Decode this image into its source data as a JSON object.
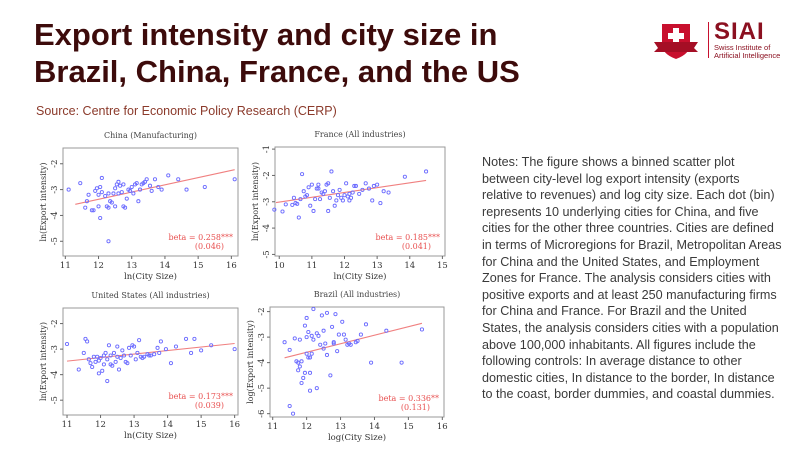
{
  "slide": {
    "title": "Export intensity and city size in Brazil, China, France, and the US",
    "source": "Source: Centre for Economic Policy Research (CERP)",
    "logo": {
      "name": "SIAI",
      "subtitle_line1": "Swiss Institute of",
      "subtitle_line2": "Artificial Intelligence"
    },
    "notes": "Notes: The figure shows a binned scatter plot between city-level log export intensity (exports relative to revenues) and log city size. Each dot (bin) represents 10 underlying cities for China, and five cities for the other three countries. Cities are defined in terms of Microregions for Brazil, Metropolitan Areas for China and the United States, and Employment Zones for France. The analysis considers cities with positive exports and at least 250 manufacturing firms for China and France. For Brazil and the United States, the analysis considers cities with a population above 100,000 inhabitants. All figures include the following controls: In average distance to other domestic cities, In distance to the border, In distance to the coast, border dummies, and coastal dummies."
  },
  "colors": {
    "title": "#3d0b0b",
    "points": "#6b6bff",
    "fit": "#f08080",
    "beta": "#e85050",
    "logo": "#c8102e"
  },
  "chart_data": [
    {
      "type": "scatter",
      "title": "China (Manufacturing)",
      "xlabel": "ln(City Size)",
      "ylabel": "ln(Export intensity)",
      "xlim": [
        10.93,
        16.2
      ],
      "ylim": [
        -5.57,
        -1.39
      ],
      "xticks": [
        11,
        12,
        13,
        14,
        15,
        16
      ],
      "yticks": [
        -2,
        -3,
        -4,
        -5
      ],
      "fit": [
        [
          11.3,
          -3.57
        ],
        [
          16.1,
          -2.23
        ]
      ],
      "beta": "beta = 0.258***",
      "se": "(0.046)",
      "points": [
        [
          11.1,
          -3.0
        ],
        [
          11.45,
          -2.75
        ],
        [
          11.6,
          -3.7
        ],
        [
          11.65,
          -3.45
        ],
        [
          11.7,
          -3.2
        ],
        [
          11.8,
          -3.8
        ],
        [
          11.85,
          -3.8
        ],
        [
          11.9,
          -3.05
        ],
        [
          11.95,
          -2.95
        ],
        [
          12.0,
          -3.2
        ],
        [
          12.0,
          -3.65
        ],
        [
          12.05,
          -2.9
        ],
        [
          12.1,
          -3.1
        ],
        [
          12.05,
          -4.1
        ],
        [
          12.1,
          -2.55
        ],
        [
          12.2,
          -3.25
        ],
        [
          12.25,
          -3.65
        ],
        [
          12.3,
          -3.7
        ],
        [
          12.3,
          -3.15
        ],
        [
          12.3,
          -5.0
        ],
        [
          12.35,
          -3.45
        ],
        [
          12.4,
          -3.5
        ],
        [
          12.45,
          -3.15
        ],
        [
          12.5,
          -2.95
        ],
        [
          12.5,
          -3.65
        ],
        [
          12.55,
          -2.8
        ],
        [
          12.6,
          -3.15
        ],
        [
          12.6,
          -2.7
        ],
        [
          12.65,
          -2.85
        ],
        [
          12.7,
          -3.1
        ],
        [
          12.75,
          -2.8
        ],
        [
          12.75,
          -3.65
        ],
        [
          12.8,
          -3.7
        ],
        [
          12.85,
          -3.35
        ],
        [
          12.9,
          -3.0
        ],
        [
          12.95,
          -3.05
        ],
        [
          13.0,
          -2.9
        ],
        [
          13.05,
          -3.15
        ],
        [
          13.1,
          -2.8
        ],
        [
          13.15,
          -2.75
        ],
        [
          13.2,
          -3.45
        ],
        [
          13.25,
          -3.0
        ],
        [
          13.3,
          -2.8
        ],
        [
          13.35,
          -2.75
        ],
        [
          13.4,
          -2.7
        ],
        [
          13.45,
          -2.6
        ],
        [
          13.55,
          -2.85
        ],
        [
          13.6,
          -3.05
        ],
        [
          13.7,
          -2.6
        ],
        [
          13.8,
          -2.9
        ],
        [
          13.9,
          -3.0
        ],
        [
          14.1,
          -2.45
        ],
        [
          14.4,
          -2.6
        ],
        [
          14.65,
          -3.0
        ],
        [
          15.2,
          -2.9
        ],
        [
          16.1,
          -2.6
        ]
      ]
    },
    {
      "type": "scatter",
      "title": "France (All industries)",
      "xlabel": "ln(City Size)",
      "ylabel": "ln(Export intensity)",
      "xlim": [
        9.87,
        15.08
      ],
      "ylim": [
        -5.06,
        -0.92
      ],
      "xticks": [
        10,
        11,
        12,
        13,
        14,
        15
      ],
      "yticks": [
        -1,
        -2,
        -3,
        -4,
        -5
      ],
      "fit": [
        [
          9.9,
          -3.03
        ],
        [
          14.5,
          -2.19
        ]
      ],
      "beta": "beta = 0.185***",
      "se": "(0.041)",
      "points": [
        [
          9.85,
          -3.3
        ],
        [
          10.1,
          -3.37
        ],
        [
          10.2,
          -3.1
        ],
        [
          10.4,
          -3.12
        ],
        [
          10.45,
          -2.85
        ],
        [
          10.5,
          -3.05
        ],
        [
          10.55,
          -3.08
        ],
        [
          10.6,
          -3.6
        ],
        [
          10.65,
          -2.9
        ],
        [
          10.7,
          -1.95
        ],
        [
          10.75,
          -2.6
        ],
        [
          10.8,
          -2.8
        ],
        [
          10.85,
          -2.75
        ],
        [
          10.9,
          -2.45
        ],
        [
          10.95,
          -3.15
        ],
        [
          11.0,
          -2.35
        ],
        [
          11.05,
          -3.35
        ],
        [
          11.1,
          -2.9
        ],
        [
          11.15,
          -2.5
        ],
        [
          11.2,
          -2.35
        ],
        [
          11.2,
          -2.5
        ],
        [
          11.25,
          -2.9
        ],
        [
          11.3,
          -2.65
        ],
        [
          11.35,
          -2.7
        ],
        [
          11.4,
          -2.6
        ],
        [
          11.45,
          -2.35
        ],
        [
          11.5,
          -2.3
        ],
        [
          11.5,
          -3.35
        ],
        [
          11.55,
          -2.85
        ],
        [
          11.6,
          -1.85
        ],
        [
          11.65,
          -2.6
        ],
        [
          11.7,
          -3.15
        ],
        [
          11.75,
          -2.95
        ],
        [
          11.8,
          -2.75
        ],
        [
          11.85,
          -2.55
        ],
        [
          11.9,
          -2.85
        ],
        [
          11.95,
          -2.95
        ],
        [
          12.0,
          -2.75
        ],
        [
          12.05,
          -2.3
        ],
        [
          12.1,
          -2.8
        ],
        [
          12.15,
          -2.95
        ],
        [
          12.15,
          -2.7
        ],
        [
          12.2,
          -2.85
        ],
        [
          12.25,
          -2.65
        ],
        [
          12.3,
          -2.4
        ],
        [
          12.35,
          -2.4
        ],
        [
          12.45,
          -2.7
        ],
        [
          12.55,
          -2.55
        ],
        [
          12.65,
          -2.3
        ],
        [
          12.75,
          -2.5
        ],
        [
          12.85,
          -2.95
        ],
        [
          12.9,
          -2.4
        ],
        [
          13.0,
          -2.35
        ],
        [
          13.1,
          -3.05
        ],
        [
          13.2,
          -2.6
        ],
        [
          13.35,
          -2.65
        ],
        [
          13.85,
          -2.05
        ],
        [
          14.5,
          -1.85
        ]
      ]
    },
    {
      "type": "scatter",
      "title": "United States (All industries)",
      "xlabel": "ln(City Size)",
      "ylabel": "ln(Export intensity)",
      "xlim": [
        10.88,
        16.1
      ],
      "ylim": [
        -5.58,
        -1.39
      ],
      "xticks": [
        11,
        12,
        13,
        14,
        15,
        16
      ],
      "yticks": [
        -2,
        -3,
        -4,
        -5
      ],
      "fit": [
        [
          11.0,
          -3.47
        ],
        [
          16.0,
          -2.78
        ]
      ],
      "beta": "beta = 0.173***",
      "se": "(0.039)",
      "points": [
        [
          11.0,
          -2.8
        ],
        [
          11.35,
          -3.8
        ],
        [
          11.5,
          -3.15
        ],
        [
          11.55,
          -2.6
        ],
        [
          11.6,
          -2.7
        ],
        [
          11.65,
          -3.4
        ],
        [
          11.7,
          -3.55
        ],
        [
          11.75,
          -3.7
        ],
        [
          11.8,
          -3.3
        ],
        [
          11.85,
          -3.5
        ],
        [
          11.9,
          -3.3
        ],
        [
          11.95,
          -3.45
        ],
        [
          11.95,
          -3.95
        ],
        [
          12.0,
          -3.35
        ],
        [
          12.05,
          -3.85
        ],
        [
          12.1,
          -3.25
        ],
        [
          12.1,
          -3.6
        ],
        [
          12.15,
          -3.15
        ],
        [
          12.2,
          -3.4
        ],
        [
          12.2,
          -4.25
        ],
        [
          12.25,
          -2.85
        ],
        [
          12.3,
          -3.25
        ],
        [
          12.3,
          -3.6
        ],
        [
          12.35,
          -3.65
        ],
        [
          12.4,
          -3.15
        ],
        [
          12.45,
          -3.5
        ],
        [
          12.5,
          -2.9
        ],
        [
          12.5,
          -3.3
        ],
        [
          12.55,
          -3.8
        ],
        [
          12.6,
          -3.35
        ],
        [
          12.65,
          -3.05
        ],
        [
          12.7,
          -3.25
        ],
        [
          12.75,
          -3.5
        ],
        [
          12.8,
          -3.55
        ],
        [
          12.85,
          -2.95
        ],
        [
          12.9,
          -3.25
        ],
        [
          12.95,
          -2.85
        ],
        [
          13.0,
          -2.9
        ],
        [
          13.05,
          -3.4
        ],
        [
          13.1,
          -3.15
        ],
        [
          13.15,
          -2.65
        ],
        [
          13.2,
          -3.3
        ],
        [
          13.25,
          -3.35
        ],
        [
          13.3,
          -3.3
        ],
        [
          13.4,
          -3.2
        ],
        [
          13.45,
          -3.25
        ],
        [
          13.5,
          -3.25
        ],
        [
          13.6,
          -3.2
        ],
        [
          13.7,
          -2.95
        ],
        [
          13.75,
          -3.15
        ],
        [
          13.8,
          -2.7
        ],
        [
          13.95,
          -3.0
        ],
        [
          14.1,
          -3.55
        ],
        [
          14.25,
          -2.9
        ],
        [
          14.55,
          -2.6
        ],
        [
          14.7,
          -3.15
        ],
        [
          14.8,
          -2.6
        ],
        [
          15.0,
          -3.05
        ],
        [
          15.3,
          -2.85
        ],
        [
          16.0,
          -3.0
        ]
      ]
    },
    {
      "type": "scatter",
      "title": "Brazil (All industries)",
      "xlabel": "log(City Size)",
      "ylabel": "log(Export intensity)",
      "xlim": [
        10.92,
        16.05
      ],
      "ylim": [
        -6.13,
        -1.82
      ],
      "xticks": [
        11,
        12,
        13,
        14,
        15,
        16
      ],
      "yticks": [
        -2,
        -3,
        -4,
        -5,
        -6
      ],
      "fit": [
        [
          11.35,
          -3.81
        ],
        [
          15.4,
          -2.46
        ]
      ],
      "beta": "beta = 0.336**",
      "se": "(0.131)",
      "points": [
        [
          11.35,
          -3.2
        ],
        [
          11.5,
          -3.5
        ],
        [
          11.5,
          -5.7
        ],
        [
          11.6,
          -6.0
        ],
        [
          11.65,
          -3.05
        ],
        [
          11.7,
          -3.95
        ],
        [
          11.75,
          -4.0
        ],
        [
          11.75,
          -4.3
        ],
        [
          11.8,
          -3.1
        ],
        [
          11.8,
          -4.15
        ],
        [
          11.85,
          -4.8
        ],
        [
          11.85,
          -3.95
        ],
        [
          11.9,
          -4.6
        ],
        [
          11.95,
          -4.4
        ],
        [
          11.95,
          -2.55
        ],
        [
          12.0,
          -3.0
        ],
        [
          12.0,
          -3.65
        ],
        [
          12.0,
          -2.25
        ],
        [
          12.05,
          -3.8
        ],
        [
          12.05,
          -2.8
        ],
        [
          12.1,
          -3.8
        ],
        [
          12.1,
          -4.4
        ],
        [
          12.1,
          -5.1
        ],
        [
          12.15,
          -2.95
        ],
        [
          12.15,
          -3.65
        ],
        [
          12.2,
          -3.1
        ],
        [
          12.2,
          -1.9
        ],
        [
          12.3,
          -2.85
        ],
        [
          12.3,
          -5.0
        ],
        [
          12.35,
          -2.95
        ],
        [
          12.4,
          -3.3
        ],
        [
          12.45,
          -2.15
        ],
        [
          12.5,
          -2.75
        ],
        [
          12.5,
          -3.45
        ],
        [
          12.55,
          -3.25
        ],
        [
          12.6,
          -3.7
        ],
        [
          12.6,
          -2.05
        ],
        [
          12.7,
          -4.5
        ],
        [
          12.75,
          -2.6
        ],
        [
          12.8,
          -3.2
        ],
        [
          12.8,
          -3.25
        ],
        [
          12.85,
          -2.1
        ],
        [
          12.9,
          -3.55
        ],
        [
          12.95,
          -2.9
        ],
        [
          13.05,
          -2.4
        ],
        [
          13.1,
          -2.9
        ],
        [
          13.15,
          -3.1
        ],
        [
          13.2,
          -3.3
        ],
        [
          13.25,
          -3.25
        ],
        [
          13.3,
          -3.3
        ],
        [
          13.45,
          -3.2
        ],
        [
          13.5,
          -3.15
        ],
        [
          13.6,
          -2.9
        ],
        [
          13.75,
          -2.5
        ],
        [
          13.9,
          -4.0
        ],
        [
          14.35,
          -2.75
        ],
        [
          14.8,
          -4.0
        ],
        [
          15.4,
          -2.7
        ]
      ]
    }
  ]
}
